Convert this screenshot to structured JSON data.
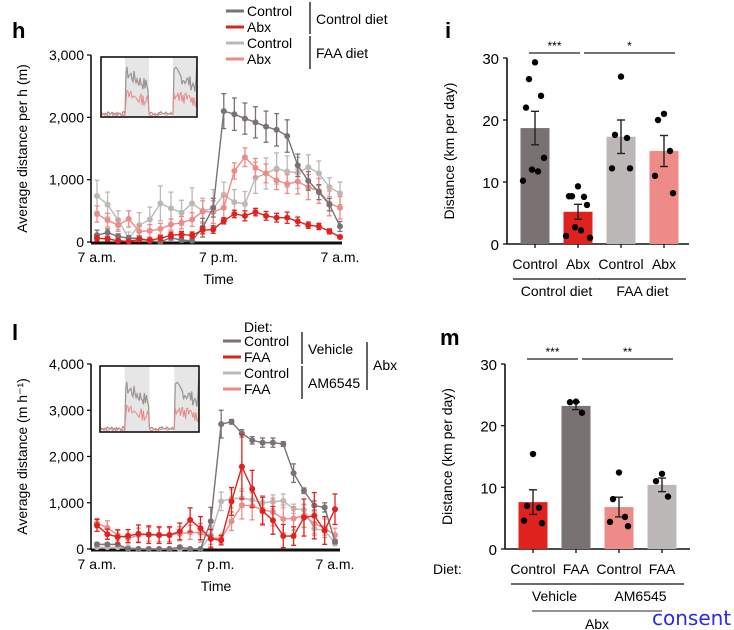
{
  "colors": {
    "control_dark": "#7a7272",
    "abx_red": "#e0221e",
    "control_light": "#bdb8b8",
    "abx_pink": "#ee8a88",
    "axis": "#111111",
    "link": "#2a2af0"
  },
  "consent_link": "consent",
  "chart_data": [
    {
      "panel": "h",
      "type": "line",
      "xlabel": "Time",
      "ylabel": "Average distance per h (m)",
      "x_tick_labels": [
        "7 a.m.",
        "7 p.m.",
        "7 a.m."
      ],
      "y_ticks": [
        0,
        1000,
        2000,
        3000
      ],
      "y_tick_labels": [
        "0",
        "1,000",
        "2,000",
        "3,000"
      ],
      "ylim": [
        0,
        3000
      ],
      "x_hours": [
        0,
        1,
        2,
        3,
        4,
        5,
        6,
        7,
        8,
        9,
        10,
        11,
        12,
        13,
        14,
        15,
        16,
        17,
        18,
        19,
        20,
        21,
        22,
        23
      ],
      "legend": {
        "entries": [
          "Control",
          "Abx",
          "Control",
          "Abx"
        ],
        "groups": [
          "Control diet",
          "FAA diet"
        ],
        "placement": "top-right"
      },
      "inset": true,
      "series": [
        {
          "name": "Control",
          "group": "Control diet",
          "color_key": "control_dark",
          "values": [
            110,
            150,
            90,
            60,
            60,
            20,
            0,
            70,
            30,
            20,
            230,
            550,
            2100,
            2050,
            1980,
            1920,
            1850,
            1800,
            1700,
            1230,
            980,
            800,
            600,
            250
          ],
          "errors": [
            80,
            60,
            40,
            40,
            40,
            30,
            30,
            40,
            30,
            30,
            150,
            150,
            280,
            260,
            250,
            250,
            250,
            260,
            260,
            180,
            150,
            120,
            100,
            80
          ]
        },
        {
          "name": "Abx",
          "group": "Control diet",
          "color_key": "abx_red",
          "values": [
            60,
            50,
            20,
            10,
            40,
            30,
            60,
            110,
            120,
            110,
            190,
            200,
            340,
            450,
            420,
            480,
            420,
            390,
            390,
            330,
            270,
            250,
            170,
            80
          ],
          "errors": [
            40,
            30,
            20,
            20,
            30,
            30,
            40,
            50,
            50,
            50,
            60,
            60,
            50,
            60,
            80,
            60,
            70,
            70,
            90,
            70,
            50,
            50,
            40,
            30
          ]
        },
        {
          "name": "Control",
          "group": "FAA diet",
          "color_key": "control_light",
          "values": [
            740,
            600,
            350,
            60,
            270,
            360,
            620,
            540,
            470,
            620,
            500,
            540,
            760,
            640,
            610,
            1030,
            1100,
            1180,
            1130,
            1110,
            1200,
            1100,
            880,
            780
          ],
          "errors": [
            250,
            200,
            150,
            100,
            200,
            200,
            280,
            260,
            200,
            250,
            200,
            300,
            200,
            200,
            200,
            250,
            250,
            250,
            250,
            250,
            200,
            200,
            150,
            180
          ]
        },
        {
          "name": "Abx",
          "group": "FAA diet",
          "color_key": "abx_pink",
          "values": [
            450,
            350,
            270,
            370,
            170,
            180,
            210,
            280,
            310,
            360,
            490,
            480,
            550,
            1140,
            1360,
            1190,
            1100,
            990,
            930,
            970,
            880,
            820,
            620,
            550
          ],
          "errors": [
            130,
            110,
            100,
            130,
            100,
            100,
            90,
            90,
            100,
            110,
            170,
            180,
            180,
            130,
            150,
            150,
            150,
            150,
            150,
            200,
            200,
            200,
            200,
            180
          ]
        }
      ]
    },
    {
      "panel": "i",
      "type": "bar",
      "ylabel": "Distance (km per day)",
      "ylim": [
        0,
        30
      ],
      "y_ticks": [
        0,
        10,
        20,
        30
      ],
      "categories": [
        "Control",
        "Abx",
        "Control",
        "Abx"
      ],
      "groups": [
        {
          "label": "Control diet",
          "span": [
            0,
            1
          ]
        },
        {
          "label": "FAA diet",
          "span": [
            2,
            3
          ]
        }
      ],
      "color_keys": [
        "control_dark",
        "abx_red",
        "control_light",
        "abx_pink"
      ],
      "values": [
        18.7,
        5.2,
        17.3,
        15.0
      ],
      "sem": [
        2.7,
        1.2,
        2.7,
        2.5
      ],
      "points": [
        [
          29.3,
          26.6,
          23.9,
          22.0,
          13.9,
          12.0,
          11.7,
          10.2
        ],
        [
          9.3,
          7.7,
          7.6,
          7.7,
          6.3,
          2.7,
          2.2,
          1.3,
          1.0
        ],
        [
          27.0,
          17.6,
          17.1,
          12.2,
          12.2
        ],
        [
          21.0,
          20.0,
          15.0,
          11.0,
          8.2
        ]
      ],
      "significance": [
        {
          "label": "***",
          "between": [
            0,
            1
          ]
        },
        {
          "label": "*",
          "between": [
            1,
            3
          ]
        }
      ]
    },
    {
      "panel": "l",
      "type": "line",
      "xlabel": "Time",
      "ylabel": "Average distance (m h⁻¹)",
      "x_tick_labels": [
        "7 a.m.",
        "7 p.m.",
        "7 a.m."
      ],
      "y_ticks": [
        0,
        1000,
        2000,
        3000,
        4000
      ],
      "y_tick_labels": [
        "0",
        "1,000",
        "2,000",
        "3,000",
        "4,000"
      ],
      "ylim": [
        0,
        4000
      ],
      "x_hours": [
        0,
        1,
        2,
        3,
        4,
        5,
        6,
        7,
        8,
        9,
        10,
        11,
        12,
        13,
        14,
        15,
        16,
        17,
        18,
        19,
        20,
        21,
        22,
        23
      ],
      "legend": {
        "title": "Diet:",
        "entries": [
          "Control",
          "FAA",
          "Control",
          "FAA"
        ],
        "groups": [
          "Vehicle",
          "AM6545"
        ],
        "outer_group": "Abx",
        "placement": "top-right"
      },
      "inset": true,
      "series": [
        {
          "name": "Control",
          "group": "Vehicle",
          "color_key": "control_dark",
          "values": [
            100,
            100,
            100,
            0,
            0,
            0,
            0,
            0,
            40,
            0,
            0,
            600,
            2700,
            2750,
            2500,
            2350,
            2300,
            2300,
            2270,
            1640,
            1260,
            940,
            900,
            160
          ],
          "errors": [
            40,
            30,
            30,
            20,
            20,
            20,
            20,
            20,
            30,
            20,
            20,
            300,
            300,
            50,
            80,
            80,
            100,
            100,
            50,
            200,
            60,
            100,
            100,
            50
          ]
        },
        {
          "name": "FAA",
          "group": "Vehicle",
          "color_key": "abx_red",
          "values": [
            510,
            320,
            260,
            280,
            330,
            310,
            300,
            300,
            380,
            630,
            450,
            220,
            190,
            1030,
            1780,
            1300,
            820,
            620,
            280,
            280,
            680,
            720,
            400,
            860
          ],
          "errors": [
            130,
            110,
            150,
            140,
            190,
            190,
            180,
            180,
            180,
            260,
            250,
            200,
            100,
            300,
            700,
            400,
            300,
            300,
            250,
            200,
            400,
            500,
            300,
            330
          ]
        },
        {
          "name": "Control",
          "group": "AM6545",
          "color_key": "control_light",
          "values": [
            40,
            40,
            40,
            40,
            0,
            0,
            0,
            0,
            0,
            0,
            0,
            300,
            1030,
            1090,
            1100,
            1060,
            1000,
            1020,
            1040,
            870,
            850,
            440,
            400,
            130
          ],
          "errors": [
            30,
            20,
            20,
            20,
            20,
            20,
            20,
            20,
            20,
            20,
            20,
            200,
            200,
            200,
            200,
            150,
            150,
            150,
            150,
            100,
            100,
            100,
            100,
            60
          ]
        },
        {
          "name": "FAA",
          "group": "AM6545",
          "color_key": "abx_pink",
          "values": [
            560,
            460,
            300,
            230,
            300,
            320,
            310,
            310,
            330,
            360,
            350,
            250,
            220,
            600,
            950,
            930,
            850,
            800,
            650,
            660,
            720,
            550,
            450,
            300
          ],
          "errors": [
            100,
            150,
            120,
            100,
            150,
            150,
            150,
            150,
            150,
            150,
            200,
            200,
            100,
            200,
            300,
            300,
            300,
            300,
            300,
            250,
            250,
            250,
            200,
            150
          ]
        }
      ]
    },
    {
      "panel": "m",
      "type": "bar",
      "ylabel": "Distance (km per day)",
      "ylim": [
        0,
        30
      ],
      "y_ticks": [
        0,
        10,
        20,
        30
      ],
      "row_label": "Diet:",
      "categories": [
        "Control",
        "FAA",
        "Control",
        "FAA"
      ],
      "groups": [
        {
          "label": "Vehicle",
          "span": [
            0,
            1
          ]
        },
        {
          "label": "AM6545",
          "span": [
            2,
            3
          ]
        }
      ],
      "outer_group": {
        "label": "Abx",
        "span": [
          0,
          3
        ]
      },
      "color_keys": [
        "abx_red",
        "control_dark",
        "abx_pink",
        "control_light"
      ],
      "values": [
        7.6,
        23.2,
        6.8,
        10.4
      ],
      "sem": [
        2.0,
        0.6,
        1.6,
        1.1
      ],
      "points": [
        [
          15.4,
          7.0,
          6.7,
          4.6,
          4.2
        ],
        [
          23.9,
          23.8,
          22.1
        ],
        [
          12.4,
          8.1,
          5.2,
          4.4,
          3.7
        ],
        [
          12.2,
          11.0,
          8.5
        ]
      ],
      "significance": [
        {
          "label": "***",
          "between": [
            0,
            1
          ]
        },
        {
          "label": "**",
          "between": [
            1,
            3
          ]
        }
      ]
    }
  ]
}
